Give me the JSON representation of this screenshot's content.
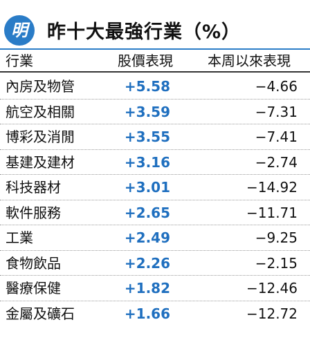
{
  "header": {
    "logo": "明",
    "title": "昨十大最強行業（%）"
  },
  "table": {
    "columns": [
      "行業",
      "股價表現",
      "本周以來表現"
    ],
    "rows": [
      [
        "內房及物管",
        "+5.58",
        "−4.66"
      ],
      [
        "航空及相關",
        "+3.59",
        "−7.31"
      ],
      [
        "博彩及消閒",
        "+3.55",
        "−7.41"
      ],
      [
        "基建及建材",
        "+3.16",
        "−2.74"
      ],
      [
        "科技器材",
        "+3.01",
        "−14.92"
      ],
      [
        "軟件服務",
        "+2.65",
        "−11.71"
      ],
      [
        "工業",
        "+2.49",
        "−9.25"
      ],
      [
        "食物飲品",
        "+2.26",
        "−2.15"
      ],
      [
        "醫療保健",
        "+1.82",
        "−12.46"
      ],
      [
        "金屬及礦石",
        "+1.66",
        "−12.72"
      ]
    ]
  }
}
